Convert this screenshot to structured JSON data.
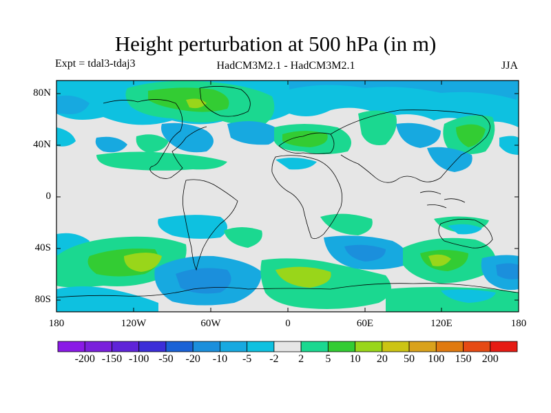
{
  "title": "Height perturbation at 500 hPa (in m)",
  "subtitle_left": "Expt = tdal3-tdaj3",
  "subtitle_center": "HadCM3M2.1 - HadCM3M2.1",
  "subtitle_right": "JJA",
  "lat_labels": [
    "80N",
    "40N",
    "0",
    "40S",
    "80S"
  ],
  "lon_labels": [
    "180",
    "120W",
    "60W",
    "0",
    "60E",
    "120E",
    "180"
  ],
  "colorbar": {
    "labels": [
      "-200",
      "-150",
      "-100",
      "-50",
      "-20",
      "-10",
      "-5",
      "-2",
      "2",
      "5",
      "10",
      "20",
      "50",
      "100",
      "150",
      "200"
    ],
    "colors": [
      "#8a1ae6",
      "#7a20dc",
      "#5f24d8",
      "#3c2ed8",
      "#1a62d6",
      "#1b8fdc",
      "#17a9e0",
      "#0ec1e0",
      "#e6e6e6",
      "#1bd890",
      "#33cc33",
      "#99d61a",
      "#ccc414",
      "#d9a21c",
      "#e07a10",
      "#e64a14",
      "#e61b14"
    ]
  },
  "palette": {
    "background": "#e6e6e6",
    "neg_light": "#0ec1e0",
    "neg_mid": "#17a9e0",
    "neg_strong": "#1b8fdc",
    "neg_deep": "#1a62d6",
    "pos_light": "#1bd890",
    "pos_mid": "#33cc33",
    "pos_strong": "#99d61a",
    "coast": "#000000"
  }
}
